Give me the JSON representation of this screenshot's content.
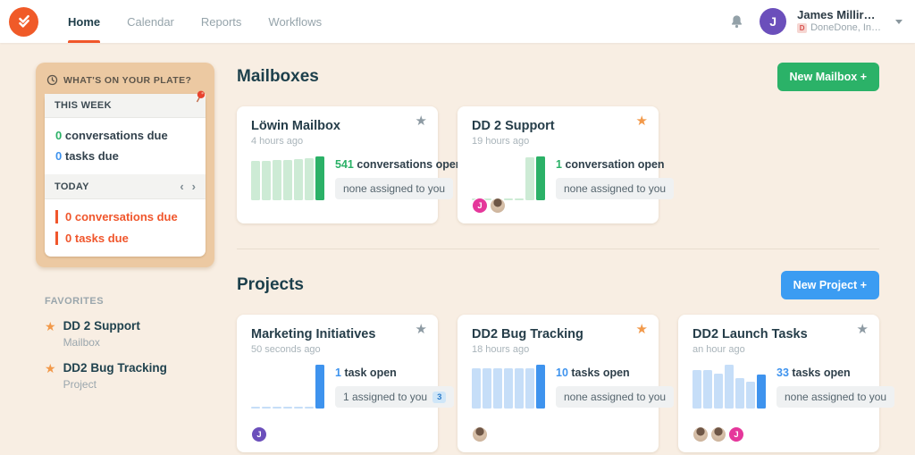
{
  "header": {
    "nav": [
      {
        "label": "Home",
        "active": true
      },
      {
        "label": "Calendar",
        "active": false
      },
      {
        "label": "Reports",
        "active": false
      },
      {
        "label": "Workflows",
        "active": false
      }
    ],
    "user": {
      "name": "James Millir…",
      "avatar_initial": "J",
      "org": "DoneDone, In…",
      "org_badge": "D"
    }
  },
  "sidebar": {
    "plate": {
      "title": "WHAT'S ON YOUR PLATE?",
      "this_week": {
        "header": "THIS WEEK",
        "items": [
          {
            "count": "0",
            "label": "conversations due"
          },
          {
            "count": "0",
            "label": "tasks due"
          }
        ]
      },
      "today": {
        "header": "TODAY",
        "prev_arrow": "‹",
        "next_arrow": "›",
        "items": [
          {
            "count": "0",
            "label": "conversations due"
          },
          {
            "count": "0",
            "label": "tasks due"
          }
        ]
      }
    },
    "favorites": {
      "title": "FAVORITES",
      "items": [
        {
          "name": "DD 2 Support",
          "type": "Mailbox"
        },
        {
          "name": "DD2 Bug Tracking",
          "type": "Project"
        }
      ]
    }
  },
  "mailboxes": {
    "title": "Mailboxes",
    "button_label": "New Mailbox +",
    "cards": [
      {
        "title": "Löwin Mailbox",
        "time": "4 hours ago",
        "starred": false,
        "count": "541",
        "count_label": "conversations open",
        "pill": "none assigned to you",
        "chart": {
          "type": "bar",
          "values": [
            0.9,
            0.9,
            0.92,
            0.92,
            0.94,
            0.95,
            1.0
          ]
        },
        "avatars": []
      },
      {
        "title": "DD 2 Support",
        "time": "19 hours ago",
        "starred": true,
        "count": "1",
        "count_label": "conversation open",
        "pill": "none assigned to you",
        "chart": {
          "type": "bar",
          "values": [
            0.05,
            0.05,
            0.05,
            0.05,
            0.05,
            0.97,
            1.0
          ]
        },
        "avatars": [
          {
            "type": "initial",
            "label": "J",
            "bg": "#e5379b"
          },
          {
            "type": "photo"
          }
        ]
      }
    ]
  },
  "projects": {
    "title": "Projects",
    "button_label": "New Project +",
    "cards": [
      {
        "title": "Marketing Initiatives",
        "time": "50 seconds ago",
        "starred": false,
        "count": "1",
        "count_label": "task open",
        "pill": "1 assigned to you",
        "pill_badge": "3",
        "chart": {
          "type": "bar",
          "values": [
            0.05,
            0.05,
            0.05,
            0.05,
            0.05,
            0.05,
            1.0
          ]
        },
        "avatars": [
          {
            "type": "initial",
            "label": "J",
            "bg": "#6b4fbb"
          }
        ]
      },
      {
        "title": "DD2 Bug Tracking",
        "time": "18 hours ago",
        "starred": true,
        "count": "10",
        "count_label": "tasks open",
        "pill": "none assigned to you",
        "chart": {
          "type": "bar",
          "values": [
            0.92,
            0.92,
            0.92,
            0.92,
            0.92,
            0.92,
            1.0
          ]
        },
        "avatars": [
          {
            "type": "photo"
          }
        ]
      },
      {
        "title": "DD2 Launch Tasks",
        "time": "an hour ago",
        "starred": false,
        "count": "33",
        "count_label": "tasks open",
        "pill": "none assigned to you",
        "chart": {
          "type": "bar",
          "values": [
            0.88,
            0.88,
            0.8,
            1.0,
            0.7,
            0.62,
            0.78
          ]
        },
        "avatars": [
          {
            "type": "photo"
          },
          {
            "type": "photo"
          },
          {
            "type": "initial",
            "label": "J",
            "bg": "#e5379b"
          }
        ]
      }
    ]
  },
  "colors": {
    "brand_orange": "#f05a28",
    "accent_orange": "#f0562c",
    "green": "#2bb167",
    "blue": "#3e93ee",
    "favorite_star": "#f2994a",
    "cream_background": "#f8eee3",
    "plate_tan": "#ecc9a2",
    "pink_avatar": "#e5379b",
    "purple_avatar": "#6b4fbb"
  }
}
